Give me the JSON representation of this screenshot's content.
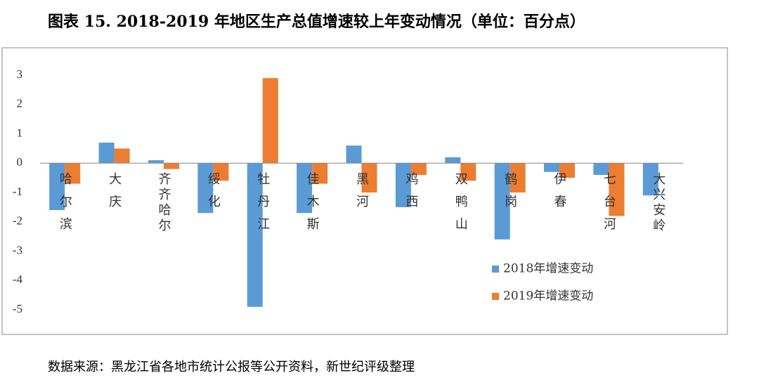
{
  "chart_data": {
    "type": "bar",
    "title": "图表 15. 2018-2019 年地区生产总值增速较上年变动情况（单位：百分点）",
    "source": "数据来源：黑龙江省各地市统计公报等公开资料，新世纪评级整理",
    "categories": [
      "哈尔滨",
      "大庆",
      "齐齐哈尔",
      "绥化",
      "牡丹江",
      "佳木斯",
      "黑河",
      "鸡西",
      "双鸭山",
      "鹤岗",
      "伊春",
      "七台河",
      "大兴安岭"
    ],
    "series": [
      {
        "name": "2018年增速变动",
        "color": "#5b9bd5",
        "values": [
          -1.6,
          0.7,
          0.1,
          -1.7,
          -4.9,
          -1.7,
          0.6,
          -1.5,
          0.2,
          -2.6,
          -0.3,
          -0.4,
          -1.1
        ]
      },
      {
        "name": "2019年增速变动",
        "color": "#ed7d31",
        "values": [
          -0.7,
          0.5,
          -0.2,
          -0.6,
          2.9,
          -0.7,
          -1.0,
          -0.4,
          -0.6,
          -1.0,
          -0.5,
          -1.8,
          0
        ]
      }
    ],
    "ylim": [
      -5,
      3
    ],
    "yticks": [
      -5,
      -4,
      -3,
      -2,
      -1,
      0,
      1,
      2,
      3
    ],
    "grid": false
  }
}
